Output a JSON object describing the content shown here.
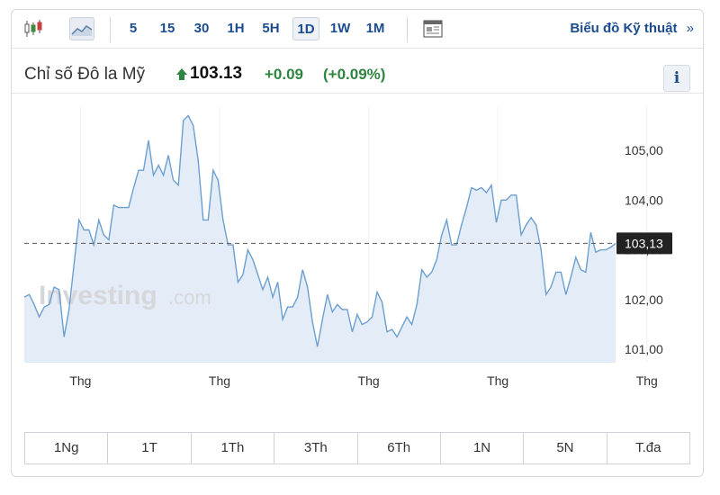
{
  "toolbar": {
    "chart_type_icons": [
      "candlestick-icon",
      "area-chart-icon"
    ],
    "periods": [
      "5",
      "15",
      "30",
      "1H",
      "5H",
      "1D",
      "1W",
      "1M"
    ],
    "active_period": "1D",
    "news_icon": "news-icon",
    "tech_chart_label": "Biểu đồ Kỹ thuật",
    "tech_chart_arrow": "»"
  },
  "instrument": {
    "name": "Chỉ số Đô la Mỹ",
    "price": "103.13",
    "change": "+0.09",
    "change_pct": "(+0.09%)",
    "direction": "up",
    "info_label": "i"
  },
  "watermark": {
    "brand": "Investing",
    "suffix": ".com"
  },
  "colors": {
    "accent": "#1b4c8f",
    "up": "#2e8540",
    "line": "#6b9fcf",
    "fill": "#e4edf7"
  },
  "ranges": [
    "1Ng",
    "1T",
    "1Th",
    "3Th",
    "6Th",
    "1N",
    "5N",
    "T.đa"
  ],
  "chart_data": {
    "type": "area",
    "y_ticks": [
      "105,00",
      "104,00",
      "103,00",
      "102,00",
      "101,00"
    ],
    "y_tick_values": [
      105,
      104,
      103,
      102,
      101
    ],
    "ylim": [
      100.73,
      105.87
    ],
    "x_ticks": [
      "Thg",
      "Thg",
      "Thg",
      "Thg",
      "Thg",
      "Thg"
    ],
    "x_tick_values": [
      11.3,
      39.3,
      69.3,
      95.3,
      125.3,
      154.3
    ],
    "last_price_label": "103,13",
    "last_price_value": 103.13,
    "grid": "vertical",
    "values": [
      102.05,
      102.1,
      101.9,
      101.65,
      101.85,
      101.9,
      102.25,
      102.2,
      101.25,
      101.8,
      102.7,
      103.6,
      103.4,
      103.4,
      103.1,
      103.6,
      103.3,
      103.2,
      103.9,
      103.85,
      103.85,
      103.85,
      104.25,
      104.6,
      104.6,
      105.2,
      104.5,
      104.7,
      104.5,
      104.9,
      104.4,
      104.3,
      105.6,
      105.7,
      105.5,
      104.8,
      103.6,
      103.6,
      104.6,
      104.4,
      103.6,
      103.1,
      103.1,
      102.35,
      102.5,
      103.0,
      102.8,
      102.5,
      102.2,
      102.45,
      102.05,
      102.35,
      101.6,
      101.85,
      101.85,
      102.05,
      102.6,
      102.25,
      101.55,
      101.05,
      101.6,
      102.1,
      101.75,
      101.9,
      101.8,
      101.8,
      101.35,
      101.7,
      101.5,
      101.55,
      101.65,
      102.15,
      101.95,
      101.35,
      101.4,
      101.25,
      101.45,
      101.65,
      101.5,
      101.9,
      102.6,
      102.45,
      102.55,
      102.8,
      103.3,
      103.6,
      103.1,
      103.1,
      103.5,
      103.85,
      104.25,
      104.2,
      104.25,
      104.15,
      104.3,
      103.55,
      104.0,
      104.0,
      104.1,
      104.1,
      103.3,
      103.5,
      103.65,
      103.5,
      103.0,
      102.1,
      102.25,
      102.55,
      102.55,
      102.1,
      102.45,
      102.85,
      102.6,
      102.55,
      103.35,
      102.95,
      103.0,
      103.0,
      103.05,
      103.13
    ]
  }
}
